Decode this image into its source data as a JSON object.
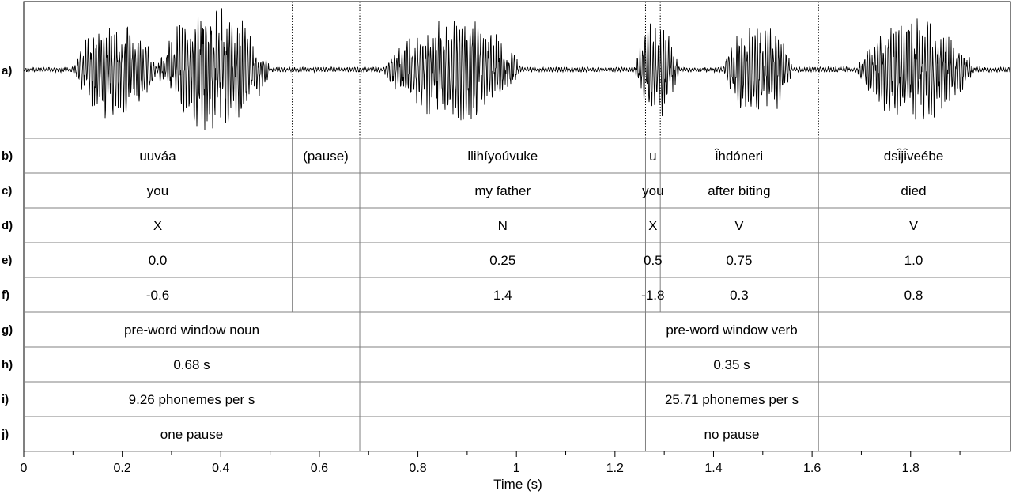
{
  "colors": {
    "line": "#000000",
    "grid": "#808080",
    "wave": "#000000"
  },
  "axis": {
    "title": "Time (s)",
    "tick_labels": [
      {
        "t": 0,
        "label": "0"
      },
      {
        "t": 0.2,
        "label": "0.2"
      },
      {
        "t": 0.4,
        "label": "0.4"
      },
      {
        "t": 0.6,
        "label": "0.6"
      },
      {
        "t": 0.8,
        "label": "0.8"
      },
      {
        "t": 1.0,
        "label": "1"
      },
      {
        "t": 1.2,
        "label": "1.2"
      },
      {
        "t": 1.4,
        "label": "1.4"
      },
      {
        "t": 1.6,
        "label": "1.6"
      },
      {
        "t": 1.8,
        "label": "1.8"
      }
    ]
  },
  "row_labels": [
    "a)",
    "b)",
    "c)",
    "d)",
    "e)",
    "f)",
    "g)",
    "h)",
    "i)",
    "j)"
  ],
  "waveform": {
    "dotted_boundaries_s": [
      0.545,
      0.682,
      1.262,
      1.292,
      1.613
    ],
    "voiced_segments": [
      {
        "start": 0.1,
        "end": 0.27,
        "amp": 0.8
      },
      {
        "start": 0.27,
        "end": 0.5,
        "amp": 1.0
      },
      {
        "start": 0.73,
        "end": 1.01,
        "amp": 0.8
      },
      {
        "start": 1.24,
        "end": 1.33,
        "amp": 0.75
      },
      {
        "start": 1.42,
        "end": 1.56,
        "amp": 0.8
      },
      {
        "start": 1.69,
        "end": 1.93,
        "amp": 0.8
      }
    ]
  },
  "tiers": [
    {
      "name": "word",
      "boundaries_s": [
        0.545,
        0.682,
        1.262,
        1.292,
        1.613
      ],
      "cells": [
        {
          "t": 0.272,
          "text": "uuváa"
        },
        {
          "t": 0.613,
          "text": "(pause)"
        },
        {
          "t": 0.972,
          "text": "llihíyoúvuke"
        },
        {
          "t": 1.277,
          "text": "u"
        },
        {
          "t": 1.452,
          "text": "ɨ̂hdóneri"
        },
        {
          "t": 1.806,
          "text": "dsɨ̂jɨ̂veébe"
        }
      ]
    },
    {
      "name": "gloss",
      "boundaries_s": [
        0.545,
        0.682,
        1.262,
        1.292,
        1.613
      ],
      "cells": [
        {
          "t": 0.272,
          "text": "you"
        },
        {
          "t": 0.972,
          "text": "my father"
        },
        {
          "t": 1.277,
          "text": "you"
        },
        {
          "t": 1.452,
          "text": "after biting"
        },
        {
          "t": 1.806,
          "text": "died"
        }
      ]
    },
    {
      "name": "category",
      "boundaries_s": [
        0.545,
        0.682,
        1.262,
        1.292,
        1.613
      ],
      "cells": [
        {
          "t": 0.272,
          "text": "X"
        },
        {
          "t": 0.972,
          "text": "N"
        },
        {
          "t": 1.277,
          "text": "X"
        },
        {
          "t": 1.452,
          "text": "V"
        },
        {
          "t": 1.806,
          "text": "V"
        }
      ]
    },
    {
      "name": "position",
      "boundaries_s": [
        0.545,
        0.682,
        1.262,
        1.292,
        1.613
      ],
      "cells": [
        {
          "t": 0.272,
          "text": "0.0"
        },
        {
          "t": 0.972,
          "text": "0.25"
        },
        {
          "t": 1.277,
          "text": "0.5"
        },
        {
          "t": 1.452,
          "text": "0.75"
        },
        {
          "t": 1.806,
          "text": "1.0"
        }
      ]
    },
    {
      "name": "value",
      "boundaries_s": [
        0.545,
        0.682,
        1.262,
        1.292,
        1.613
      ],
      "cells": [
        {
          "t": 0.272,
          "text": "-0.6"
        },
        {
          "t": 0.972,
          "text": "1.4"
        },
        {
          "t": 1.277,
          "text": "-1.8"
        },
        {
          "t": 1.452,
          "text": "0.3"
        },
        {
          "t": 1.806,
          "text": "0.8"
        }
      ]
    },
    {
      "name": "window",
      "boundaries_s": [
        0.682,
        1.262,
        1.613
      ],
      "cells": [
        {
          "t": 0.341,
          "text": "pre-word window noun"
        },
        {
          "t": 1.437,
          "text": "pre-word window verb"
        }
      ]
    },
    {
      "name": "duration",
      "boundaries_s": [
        0.682,
        1.262,
        1.613
      ],
      "cells": [
        {
          "t": 0.341,
          "text": "0.68 s"
        },
        {
          "t": 1.437,
          "text": "0.35 s"
        }
      ]
    },
    {
      "name": "rate",
      "boundaries_s": [
        0.682,
        1.262,
        1.613
      ],
      "cells": [
        {
          "t": 0.341,
          "text": "9.26 phonemes per s"
        },
        {
          "t": 1.437,
          "text": "25.71 phonemes per s"
        }
      ]
    },
    {
      "name": "pause",
      "boundaries_s": [
        0.682,
        1.262,
        1.613
      ],
      "cells": [
        {
          "t": 0.341,
          "text": "one pause"
        },
        {
          "t": 1.437,
          "text": "no pause"
        }
      ]
    }
  ]
}
